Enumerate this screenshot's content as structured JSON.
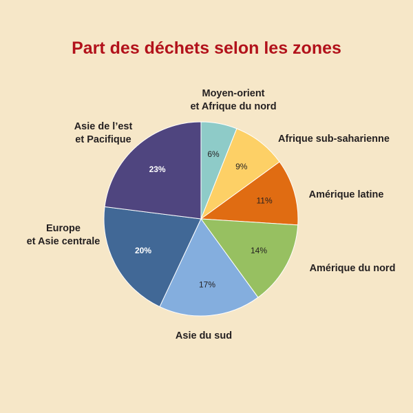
{
  "chart_data": {
    "type": "pie",
    "title": "Part des déchets selon  les zones",
    "start_angle_deg": 0,
    "direction": "clockwise",
    "slices": [
      {
        "label_lines": [
          "Moyen-orient",
          "et Afrique du nord"
        ],
        "value": 6,
        "value_label": "6%",
        "color": "#8ecbc8",
        "text_color": "#231f20"
      },
      {
        "label_lines": [
          "Afrique sub-saharienne"
        ],
        "value": 9,
        "value_label": "9%",
        "color": "#fdd066",
        "text_color": "#231f20"
      },
      {
        "label_lines": [
          "Amérique latine"
        ],
        "value": 11,
        "value_label": "11%",
        "color": "#e06c12",
        "text_color": "#231f20"
      },
      {
        "label_lines": [
          "Amérique du nord"
        ],
        "value": 14,
        "value_label": "14%",
        "color": "#97c061",
        "text_color": "#231f20"
      },
      {
        "label_lines": [
          "Asie du sud"
        ],
        "value": 17,
        "value_label": "17%",
        "color": "#84aede",
        "text_color": "#231f20"
      },
      {
        "label_lines": [
          "Europe",
          "et Asie centrale"
        ],
        "value": 20,
        "value_label": "20%",
        "color": "#416896",
        "text_color": "#ffffff"
      },
      {
        "label_lines": [
          "Asie de l’est",
          "et Pacifique"
        ],
        "value": 23,
        "value_label": "23%",
        "color": "#4f457f",
        "text_color": "#ffffff"
      }
    ]
  }
}
